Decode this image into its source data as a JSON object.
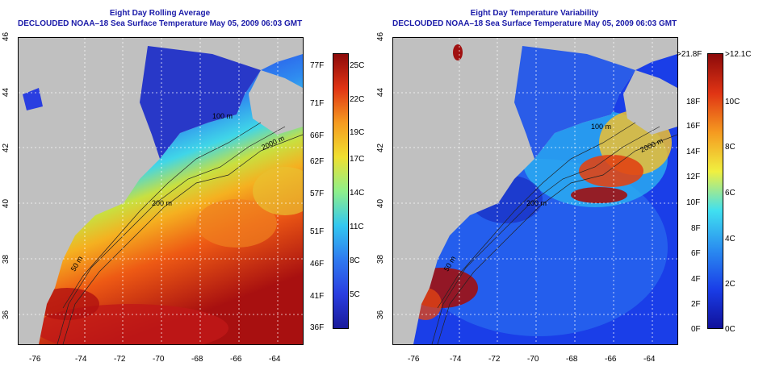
{
  "left_panel": {
    "title_line1": "Eight Day Rolling Average",
    "title_line2": "DECLOUDED NOAA–18 Sea Surface Temperature May 05, 2009 06:03 GMT",
    "lat_ticks": [
      "46",
      "44",
      "42",
      "40",
      "38",
      "36"
    ],
    "lon_ticks": [
      "-76",
      "-74",
      "-72",
      "-70",
      "-68",
      "-66",
      "-64"
    ],
    "contour_labels": [
      "2000 m",
      "200 m",
      "50 m",
      "100 m"
    ],
    "colorbar_f": [
      "77F",
      "71F",
      "66F",
      "62F",
      "57F",
      "51F",
      "46F",
      "41F",
      "36F"
    ],
    "colorbar_c": [
      "25C",
      "22C",
      "19C",
      "17C",
      "14C",
      "11C",
      "8C",
      "5C"
    ]
  },
  "right_panel": {
    "title_line1": "Eight Day Temperature Variability",
    "title_line2": "DECLOUDED NOAA–18 Sea Surface Temperature May 05, 2009 06:03 GMT",
    "lat_ticks": [
      "46",
      "44",
      "42",
      "40",
      "38",
      "36"
    ],
    "lon_ticks": [
      "-76",
      "-74",
      "-72",
      "-70",
      "-68",
      "-66",
      "-64"
    ],
    "contour_labels": [
      "100 m",
      "2000 m",
      "200 m",
      "50 m"
    ],
    "colorbar_f": [
      ">21.8F",
      "18F",
      "16F",
      "14F",
      "12F",
      "10F",
      "8F",
      "6F",
      "4F",
      "2F",
      "0F"
    ],
    "colorbar_c": [
      ">12.1C",
      "10C",
      "8C",
      "6C",
      "4C",
      "2C",
      "0C"
    ]
  },
  "colors": {
    "title": "#1a1aa8",
    "land": "#c0c0c0",
    "sst_scale": [
      "#1a1a9a",
      "#2a3ee0",
      "#2f7af0",
      "#33c8f0",
      "#8ff08a",
      "#f0e830",
      "#f5a020",
      "#e84a14",
      "#a01010"
    ],
    "var_scale": [
      "#10109a",
      "#1a3ee8",
      "#2a8cf0",
      "#40e0f0",
      "#f0f040",
      "#f59a20",
      "#e03414",
      "#8c0a0a"
    ]
  }
}
